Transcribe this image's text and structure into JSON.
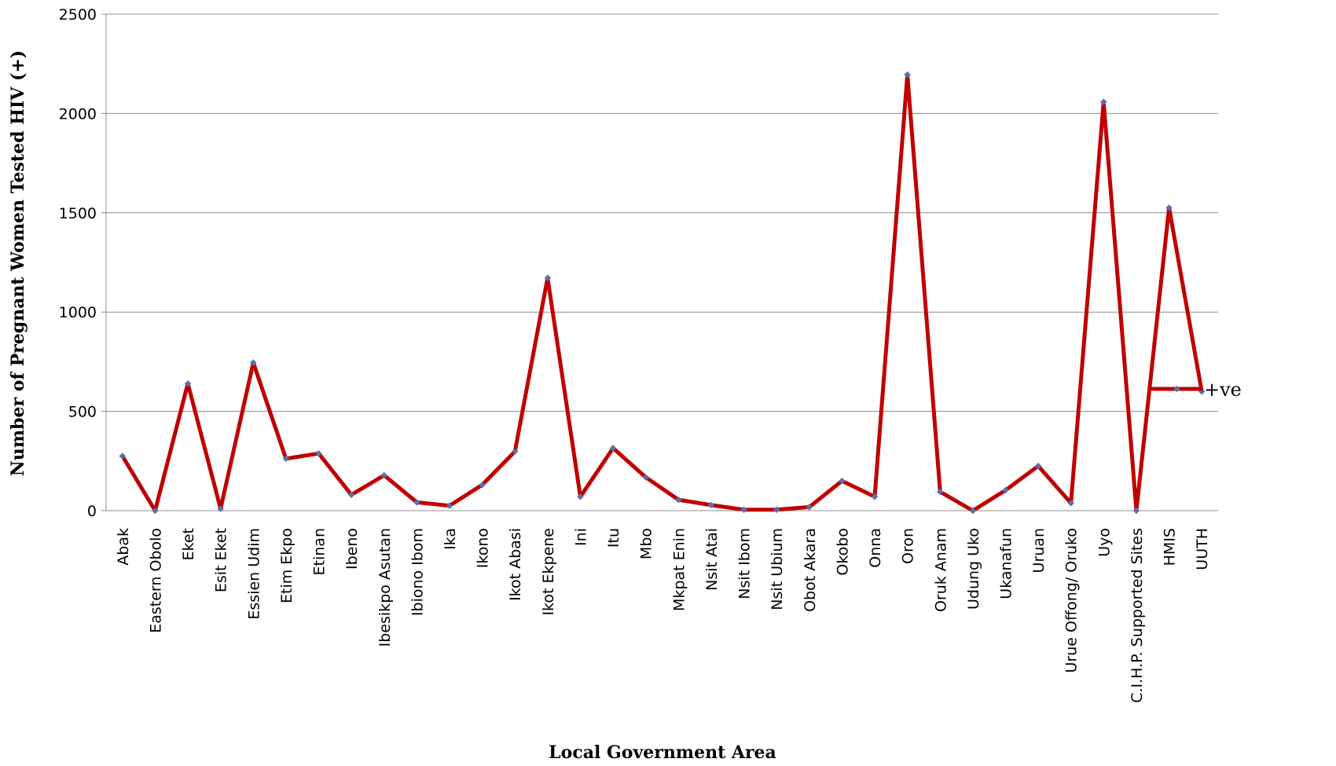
{
  "chart_data": {
    "type": "line",
    "title": "",
    "xlabel": "Local Government Area",
    "ylabel": "Number of Pregnant Women Tested HIV (+)",
    "ylim": [
      0,
      2500
    ],
    "yticks": [
      0,
      500,
      1000,
      1500,
      2000,
      2500
    ],
    "grid": true,
    "legend_position": "right",
    "categories": [
      "Abak",
      "Eastern Obolo",
      "Eket",
      "Esit Eket",
      "Essien Udim",
      "Etim Ekpo",
      "Etinan",
      "Ibeno",
      "Ibesikpo Asutan",
      "Ibiono Ibom",
      "Ika",
      "Ikono",
      "Ikot Abasi",
      "Ikot Ekpene",
      "Ini",
      "Itu",
      "Mbo",
      "Mkpat Enin",
      "Nsit Atai",
      "Nsit Ibom",
      "Nsit Ubium",
      "Obot Akara",
      "Okobo",
      "Onna",
      "Oron",
      "Oruk Anam",
      "Udung Uko",
      "Ukanafun",
      "Uruan",
      "Urue Offong/ Oruko",
      "Uyo",
      "C.I.H.P. Supported Sites",
      "HMIS",
      "UUTH"
    ],
    "series": [
      {
        "name": "+ve",
        "color": "#c00000",
        "marker_color": "#5b6fa8",
        "values": [
          275,
          0,
          640,
          10,
          745,
          262,
          288,
          80,
          178,
          42,
          25,
          130,
          298,
          1172,
          70,
          315,
          168,
          55,
          28,
          5,
          5,
          18,
          150,
          70,
          2195,
          95,
          0,
          103,
          225,
          38,
          2058,
          0,
          1525,
          600
        ]
      }
    ]
  }
}
